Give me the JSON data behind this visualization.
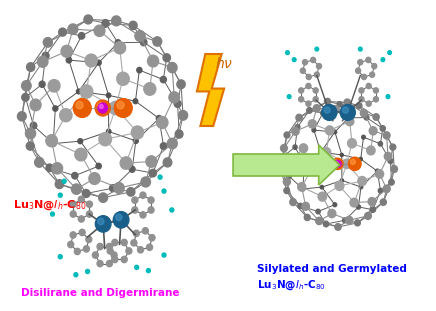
{
  "background_color": "#ffffff",
  "text_red": "#ff0000",
  "text_magenta": "#ff00ff",
  "text_blue": "#0000ff",
  "arrow_color": "#b8e890",
  "lightning_gold": "#ffc000",
  "lightning_orange": "#ff8000",
  "fig_width": 4.36,
  "fig_height": 3.11,
  "dpi": 100,
  "lu3n_label": "Lu$_3$N@$\\mathit{I}_h$-C$_{80}$",
  "disil_label": "Disilirane and Digermirane",
  "prod_label1": "Silylated and Germylated",
  "prod_label2": "Lu$_3$N@$\\mathit{I}_h$-C$_{80}$",
  "hv_label": "$h\\nu$"
}
